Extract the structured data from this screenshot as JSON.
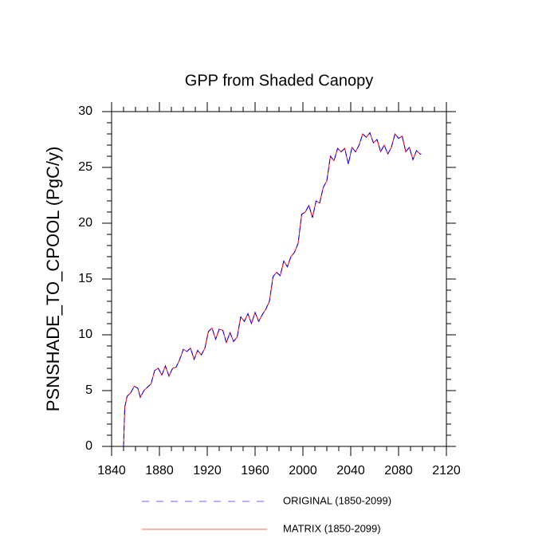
{
  "chart_data": {
    "type": "line",
    "title": "GPP from Shaded Canopy",
    "y_label": "PSNSHADE_TO_CPOOL  (PgC/y)",
    "xlim": [
      1840,
      2120
    ],
    "ylim": [
      0,
      30
    ],
    "xticks": [
      1840,
      1880,
      1920,
      1960,
      2000,
      2040,
      2080,
      2120
    ],
    "yticks": [
      0,
      5,
      10,
      15,
      20,
      25,
      30
    ],
    "xminorticks": [
      1850,
      1860,
      1870,
      1890,
      1900,
      1910,
      1930,
      1940,
      1950,
      1970,
      1980,
      1990,
      2010,
      2020,
      2030,
      2050,
      2060,
      2070,
      2090,
      2100,
      2110
    ],
    "yminorticks": [
      1,
      2,
      3,
      4,
      6,
      7,
      8,
      9,
      11,
      12,
      13,
      14,
      16,
      17,
      18,
      19,
      21,
      22,
      23,
      24,
      26,
      27,
      28,
      29
    ],
    "x": [
      1850,
      1851,
      1853,
      1856,
      1859,
      1862,
      1864,
      1867,
      1870,
      1873,
      1876,
      1879,
      1882,
      1885,
      1888,
      1891,
      1894,
      1897,
      1900,
      1903,
      1906,
      1909,
      1912,
      1915,
      1918,
      1921,
      1924,
      1927,
      1930,
      1933,
      1936,
      1939,
      1942,
      1945,
      1948,
      1951,
      1954,
      1957,
      1960,
      1963,
      1966,
      1969,
      1972,
      1975,
      1978,
      1981,
      1984,
      1987,
      1990,
      1993,
      1996,
      1999,
      2002,
      2005,
      2008,
      2011,
      2014,
      2017,
      2020,
      2023,
      2026,
      2029,
      2032,
      2035,
      2038,
      2041,
      2044,
      2047,
      2050,
      2053,
      2056,
      2059,
      2062,
      2065,
      2068,
      2071,
      2074,
      2077,
      2080,
      2083,
      2086,
      2089,
      2092,
      2095,
      2098,
      2099
    ],
    "series": [
      {
        "name": "MATRIX (1850-2099)",
        "color": "#ff0000",
        "dash": false,
        "values": [
          0,
          3.5,
          4.5,
          4.8,
          5.4,
          5.2,
          4.4,
          5.0,
          5.3,
          5.6,
          6.8,
          7.0,
          6.4,
          7.2,
          6.3,
          7.0,
          7.1,
          7.8,
          8.7,
          8.5,
          8.8,
          7.8,
          8.6,
          8.2,
          8.8,
          10.3,
          10.6,
          9.6,
          10.5,
          10.4,
          9.3,
          10.2,
          9.4,
          9.8,
          11.6,
          11.2,
          11.9,
          11.0,
          12.0,
          11.2,
          11.8,
          12.3,
          13.0,
          15.2,
          15.6,
          15.3,
          16.6,
          16.1,
          17.0,
          17.4,
          18.2,
          20.8,
          21.0,
          21.6,
          20.5,
          22.0,
          21.8,
          23.2,
          23.8,
          26.0,
          25.6,
          26.7,
          26.4,
          26.7,
          25.3,
          26.8,
          26.4,
          27.0,
          28.0,
          27.7,
          28.1,
          27.2,
          27.5,
          26.4,
          27.0,
          26.2,
          26.8,
          28.0,
          27.6,
          27.8,
          26.4,
          26.8,
          25.7,
          26.5,
          26.2,
          26.2
        ]
      },
      {
        "name": "ORIGINAL (1850-2099)",
        "color": "#0000ff",
        "dash": true,
        "values": [
          0,
          3.5,
          4.5,
          4.8,
          5.4,
          5.2,
          4.4,
          5.0,
          5.3,
          5.6,
          6.8,
          7.0,
          6.4,
          7.2,
          6.3,
          7.0,
          7.1,
          7.8,
          8.7,
          8.5,
          8.8,
          7.8,
          8.6,
          8.2,
          8.8,
          10.3,
          10.6,
          9.6,
          10.5,
          10.4,
          9.3,
          10.2,
          9.4,
          9.8,
          11.6,
          11.2,
          11.9,
          11.0,
          12.0,
          11.2,
          11.8,
          12.3,
          13.0,
          15.2,
          15.6,
          15.3,
          16.6,
          16.1,
          17.0,
          17.4,
          18.2,
          20.8,
          21.0,
          21.6,
          20.5,
          22.0,
          21.8,
          23.2,
          23.8,
          26.0,
          25.6,
          26.7,
          26.4,
          26.7,
          25.3,
          26.8,
          26.4,
          27.0,
          28.0,
          27.7,
          28.1,
          27.2,
          27.5,
          26.4,
          27.0,
          26.2,
          26.8,
          28.0,
          27.6,
          27.8,
          26.4,
          26.8,
          25.7,
          26.5,
          26.2,
          26.2
        ]
      }
    ]
  }
}
